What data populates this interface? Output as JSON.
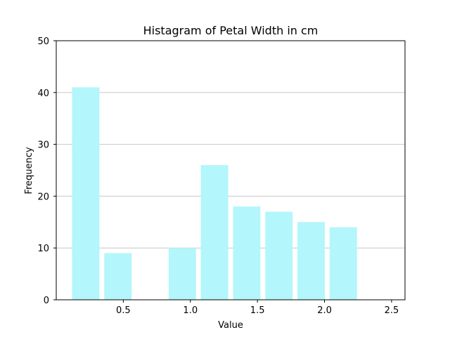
{
  "chart_data": {
    "type": "bar",
    "title": "Histagram of Petal Width in cm",
    "xlabel": "Value",
    "ylabel": "Frequency",
    "xlim": [
      0.0,
      2.6
    ],
    "ylim": [
      0,
      50
    ],
    "xticks": [
      0.5,
      1.0,
      1.5,
      2.0,
      2.5
    ],
    "xtick_labels": [
      "0.5",
      "1.0",
      "1.5",
      "2.0",
      "2.5"
    ],
    "yticks": [
      0,
      10,
      20,
      30,
      40,
      50
    ],
    "ytick_labels": [
      "0",
      "10",
      "20",
      "30",
      "40",
      "50"
    ],
    "grid": "y",
    "bins": [
      {
        "start": 0.1,
        "end": 0.34,
        "value": 41
      },
      {
        "start": 0.34,
        "end": 0.58,
        "value": 9
      },
      {
        "start": 0.58,
        "end": 0.82,
        "value": 0
      },
      {
        "start": 0.82,
        "end": 1.06,
        "value": 10
      },
      {
        "start": 1.06,
        "end": 1.3,
        "value": 26
      },
      {
        "start": 1.3,
        "end": 1.54,
        "value": 18
      },
      {
        "start": 1.54,
        "end": 1.78,
        "value": 17
      },
      {
        "start": 1.78,
        "end": 2.02,
        "value": 15
      },
      {
        "start": 2.02,
        "end": 2.26,
        "value": 14
      },
      {
        "start": 2.26,
        "end": 2.5,
        "value": 0
      }
    ],
    "colors": {
      "bar": "#b3f6fb",
      "grid": "#c8c8c8",
      "axis": "#000000"
    }
  }
}
